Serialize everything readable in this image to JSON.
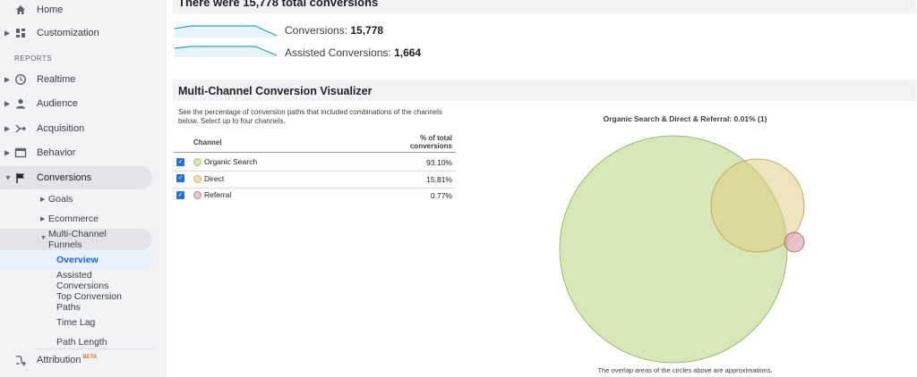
{
  "sidebar": {
    "home": "Home",
    "customization": "Customization",
    "reports_heading": "REPORTS",
    "realtime": "Realtime",
    "audience": "Audience",
    "acquisition": "Acquisition",
    "behavior": "Behavior",
    "conversions": "Conversions",
    "goals": "Goals",
    "ecommerce": "Ecommerce",
    "mcf_line1": "Multi-Channel",
    "mcf_line2": "Funnels",
    "overview": "Overview",
    "assisted_line1": "Assisted",
    "assisted_line2": "Conversions",
    "top_paths_line1": "Top Conversion",
    "top_paths_line2": "Paths",
    "time_lag": "Time Lag",
    "path_length": "Path Length",
    "attribution": "Attribution",
    "attribution_badge": "BETA"
  },
  "summary": {
    "title": "There were 15,778 total conversions",
    "conversions_label": "Conversions: ",
    "conversions_value": "15,778",
    "assisted_label": "Assisted Conversions: ",
    "assisted_value": "1,664"
  },
  "visualizer": {
    "title": "Multi-Channel Conversion Visualizer",
    "description": "See the percentage of conversion paths that included combinations of the channels below. Select up to four channels.",
    "col_channel": "Channel",
    "col_pct_line1": "% of total",
    "col_pct_line2": "conversions",
    "channels": [
      {
        "name": "Organic Search",
        "pct": "93.10%",
        "checked": true,
        "color": "#d4e6b5"
      },
      {
        "name": "Direct",
        "pct": "15.81%",
        "checked": true,
        "color": "#ece3a6"
      },
      {
        "name": "Referral",
        "pct": "0.77%",
        "checked": true,
        "color": "#e6c8cf"
      }
    ],
    "venn_title": "Organic Search & Direct & Referral: 0.01% (1)",
    "venn_note": "The overlap areas of the circles above are approximations."
  },
  "colors": {
    "accent_blue": "#1a73e8",
    "sparkline": "#2aa1c9",
    "organic_fill": "#d2e4b0",
    "direct_fill": "#e9dcaa",
    "referral_fill": "#e8c5cc"
  }
}
